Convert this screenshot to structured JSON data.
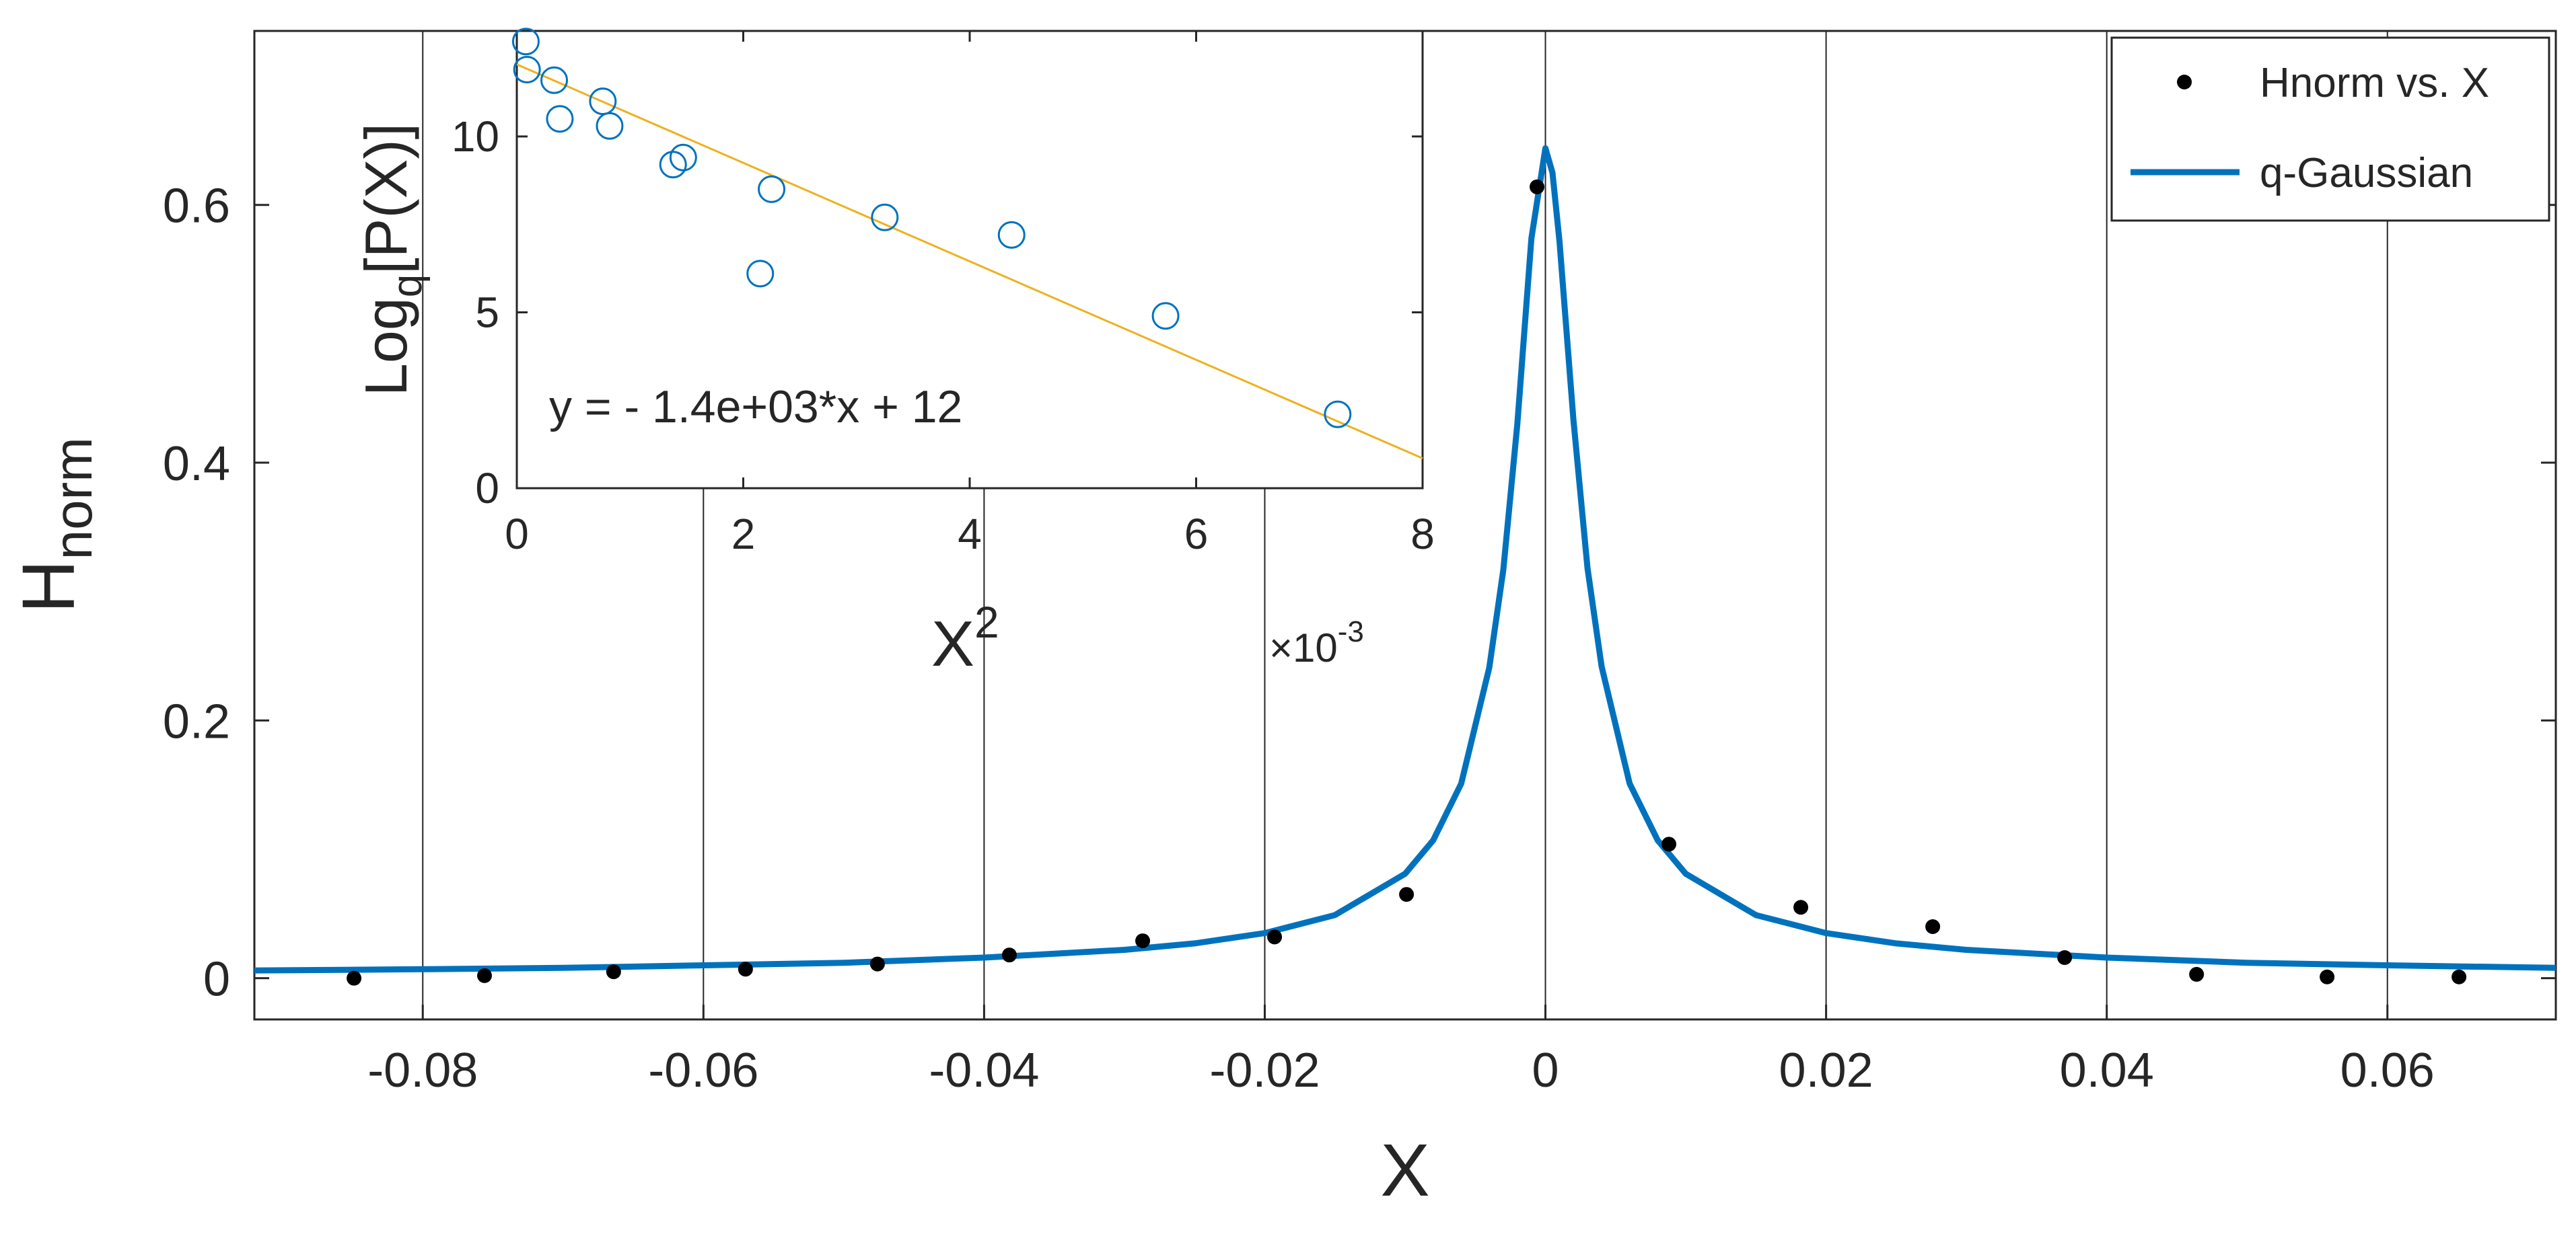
{
  "chart_data": [
    {
      "type": "scatter",
      "role": "main",
      "xlabel": "X",
      "ylabel": {
        "base": "H",
        "sub": "norm"
      },
      "xlim": [
        -0.092,
        0.072
      ],
      "ylim": [
        -0.032,
        0.735
      ],
      "x_ticks": [
        -0.08,
        -0.06,
        -0.04,
        -0.02,
        0,
        0.02,
        0.04,
        0.06
      ],
      "x_tick_labels": [
        "-0.08",
        "-0.06",
        "-0.04",
        "-0.02",
        "0",
        "0.02",
        "0.04",
        "0.06"
      ],
      "y_ticks": [
        0,
        0.2,
        0.4,
        0.6
      ],
      "y_tick_labels": [
        "0",
        "0.2",
        "0.4",
        "0.6"
      ],
      "grid": "vertical",
      "legend": {
        "position": "top-right",
        "entries": [
          {
            "label": "Hnorm vs. X",
            "marker": "dot",
            "color": "#000000"
          },
          {
            "label": "q-Gaussian",
            "marker": "line",
            "color": "#0072BD"
          }
        ]
      },
      "series": [
        {
          "name": "Hnorm vs. X",
          "kind": "points",
          "color": "#000000",
          "x": [
            -0.0849,
            -0.0756,
            -0.0664,
            -0.057,
            -0.0476,
            -0.0382,
            -0.0287,
            -0.0193,
            -0.0099,
            -0.0006,
            0.0088,
            0.0182,
            0.0276,
            0.037,
            0.0464,
            0.0557,
            0.0651
          ],
          "y": [
            0.0,
            0.002,
            0.005,
            0.007,
            0.011,
            0.018,
            0.029,
            0.032,
            0.065,
            0.614,
            0.104,
            0.055,
            0.04,
            0.016,
            0.003,
            0.001,
            0.001
          ]
        },
        {
          "name": "q-Gaussian",
          "kind": "line",
          "color": "#0072BD",
          "x": [
            -0.092,
            -0.08,
            -0.07,
            -0.06,
            -0.05,
            -0.04,
            -0.03,
            -0.025,
            -0.02,
            -0.015,
            -0.01,
            -0.008,
            -0.006,
            -0.004,
            -0.003,
            -0.002,
            -0.001,
            0,
            0.0005,
            0.001,
            0.002,
            0.003,
            0.004,
            0.006,
            0.008,
            0.01,
            0.015,
            0.02,
            0.025,
            0.03,
            0.04,
            0.05,
            0.06,
            0.072
          ],
          "y": [
            0.006,
            0.007,
            0.008,
            0.01,
            0.012,
            0.016,
            0.022,
            0.027,
            0.035,
            0.049,
            0.081,
            0.107,
            0.151,
            0.241,
            0.317,
            0.43,
            0.574,
            0.644,
            0.625,
            0.572,
            0.433,
            0.318,
            0.242,
            0.151,
            0.107,
            0.081,
            0.049,
            0.035,
            0.027,
            0.022,
            0.016,
            0.012,
            0.01,
            0.008
          ]
        }
      ]
    },
    {
      "type": "scatter",
      "role": "inset",
      "xlabel": {
        "base": "X",
        "sup": "2"
      },
      "ylabel": {
        "pre": "Log",
        "sub": "q",
        "post": "[P(X)]"
      },
      "x_multiplier": {
        "prefix": "×10",
        "exp": "-3"
      },
      "xlim": [
        0,
        8
      ],
      "ylim": [
        0,
        13
      ],
      "x_ticks": [
        0,
        2,
        4,
        6,
        8
      ],
      "x_tick_labels": [
        "0",
        "2",
        "4",
        "6",
        "8"
      ],
      "y_ticks": [
        0,
        5,
        10
      ],
      "y_tick_labels": [
        "0",
        "5",
        "10"
      ],
      "annotation": "y = - 1.4e+03*x + 12",
      "series": [
        {
          "name": "points",
          "kind": "points",
          "marker": "circle-open",
          "color": "#0072BD",
          "x": [
            0.08,
            0.09,
            0.33,
            0.38,
            0.76,
            0.82,
            1.38,
            1.47,
            2.15,
            2.25,
            3.25,
            4.37,
            5.73,
            7.25
          ],
          "y": [
            12.7,
            11.9,
            11.6,
            10.5,
            11.0,
            10.3,
            9.2,
            9.4,
            6.1,
            8.5,
            7.7,
            7.2,
            4.9,
            2.1
          ]
        },
        {
          "name": "fit",
          "kind": "line",
          "color": "#EDB120",
          "x": [
            0,
            8
          ],
          "y": [
            12.05,
            0.85
          ]
        }
      ]
    }
  ]
}
